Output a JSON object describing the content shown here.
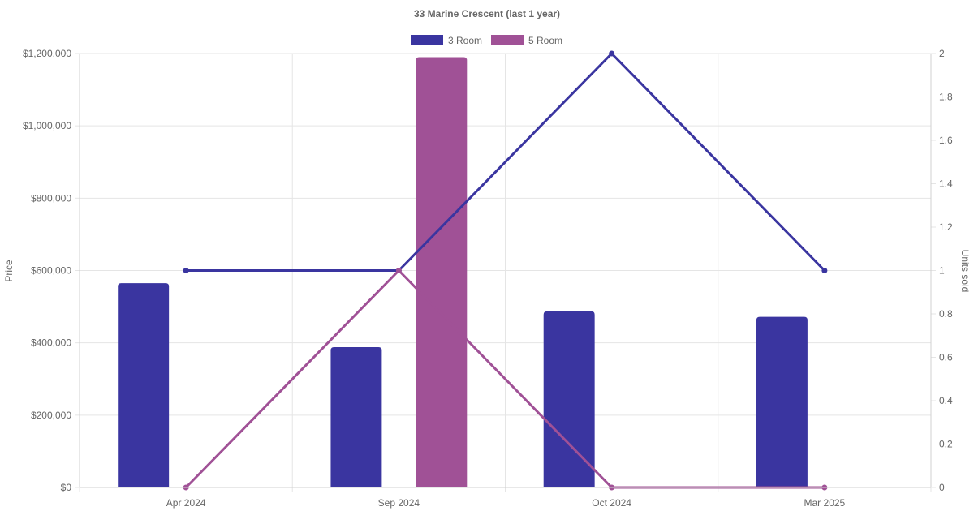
{
  "chart_data": {
    "type": "bar",
    "title": "33 Marine Crescent (last 1 year)",
    "categories": [
      "Apr 2024",
      "Sep 2024",
      "Oct 2024",
      "Mar 2025"
    ],
    "legend": {
      "position": "top",
      "items": [
        {
          "label": "3 Room",
          "color": "#3a35a0"
        },
        {
          "label": "5 Room",
          "color": "#a05196"
        }
      ]
    },
    "y_left": {
      "label": "Price",
      "range": [
        0,
        1200000
      ],
      "ticks": [
        "$0",
        "$200,000",
        "$400,000",
        "$600,000",
        "$800,000",
        "$1,000,000",
        "$1,200,000"
      ],
      "tick_values": [
        0,
        200000,
        400000,
        600000,
        800000,
        1000000,
        1200000
      ]
    },
    "y_right": {
      "label": "Units sold",
      "range": [
        0,
        2
      ],
      "ticks": [
        "0",
        "0.2",
        "0.4",
        "0.6",
        "0.8",
        "1",
        "1.2",
        "1.4",
        "1.6",
        "1.8",
        "2"
      ],
      "tick_values": [
        0,
        0.2,
        0.4,
        0.6,
        0.8,
        1,
        1.2,
        1.4,
        1.6,
        1.8,
        2
      ]
    },
    "grid": true,
    "bar_series": [
      {
        "name": "3 Room",
        "color": "#3a35a0",
        "values": [
          565000,
          388000,
          487000,
          472000
        ]
      },
      {
        "name": "5 Room",
        "color": "#a05196",
        "values": [
          null,
          1190000,
          null,
          null
        ]
      }
    ],
    "line_series": [
      {
        "name": "3 Room",
        "color": "#3a35a0",
        "values": [
          1,
          1,
          2,
          1
        ]
      },
      {
        "name": "5 Room",
        "color": "#a05196",
        "values": [
          0,
          1,
          0,
          0
        ]
      }
    ]
  }
}
